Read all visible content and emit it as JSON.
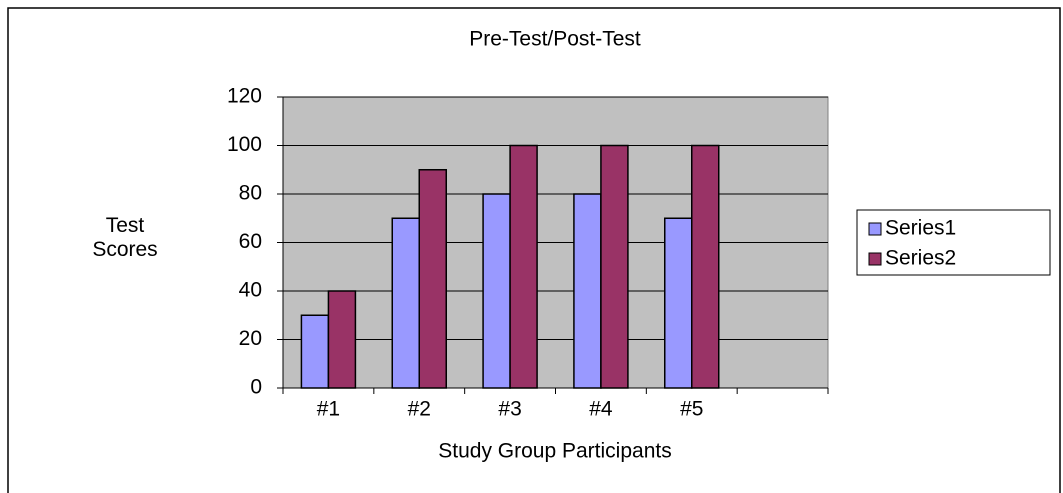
{
  "chart_data": {
    "type": "bar",
    "title": "Pre-Test/Post-Test",
    "xlabel": "Study Group Participants",
    "ylabel": "Test Scores",
    "categories": [
      "#1",
      "#2",
      "#3",
      "#4",
      "#5",
      null
    ],
    "series": [
      {
        "name": "Series1",
        "color": "#9999ff",
        "values": [
          30,
          70,
          80,
          80,
          70,
          null
        ]
      },
      {
        "name": "Series2",
        "color": "#993366",
        "values": [
          40,
          90,
          100,
          100,
          100,
          null
        ]
      }
    ],
    "ylim": [
      0,
      120
    ],
    "yticks": [
      0,
      20,
      40,
      60,
      80,
      100,
      120
    ],
    "grid": true,
    "legend": "right"
  }
}
